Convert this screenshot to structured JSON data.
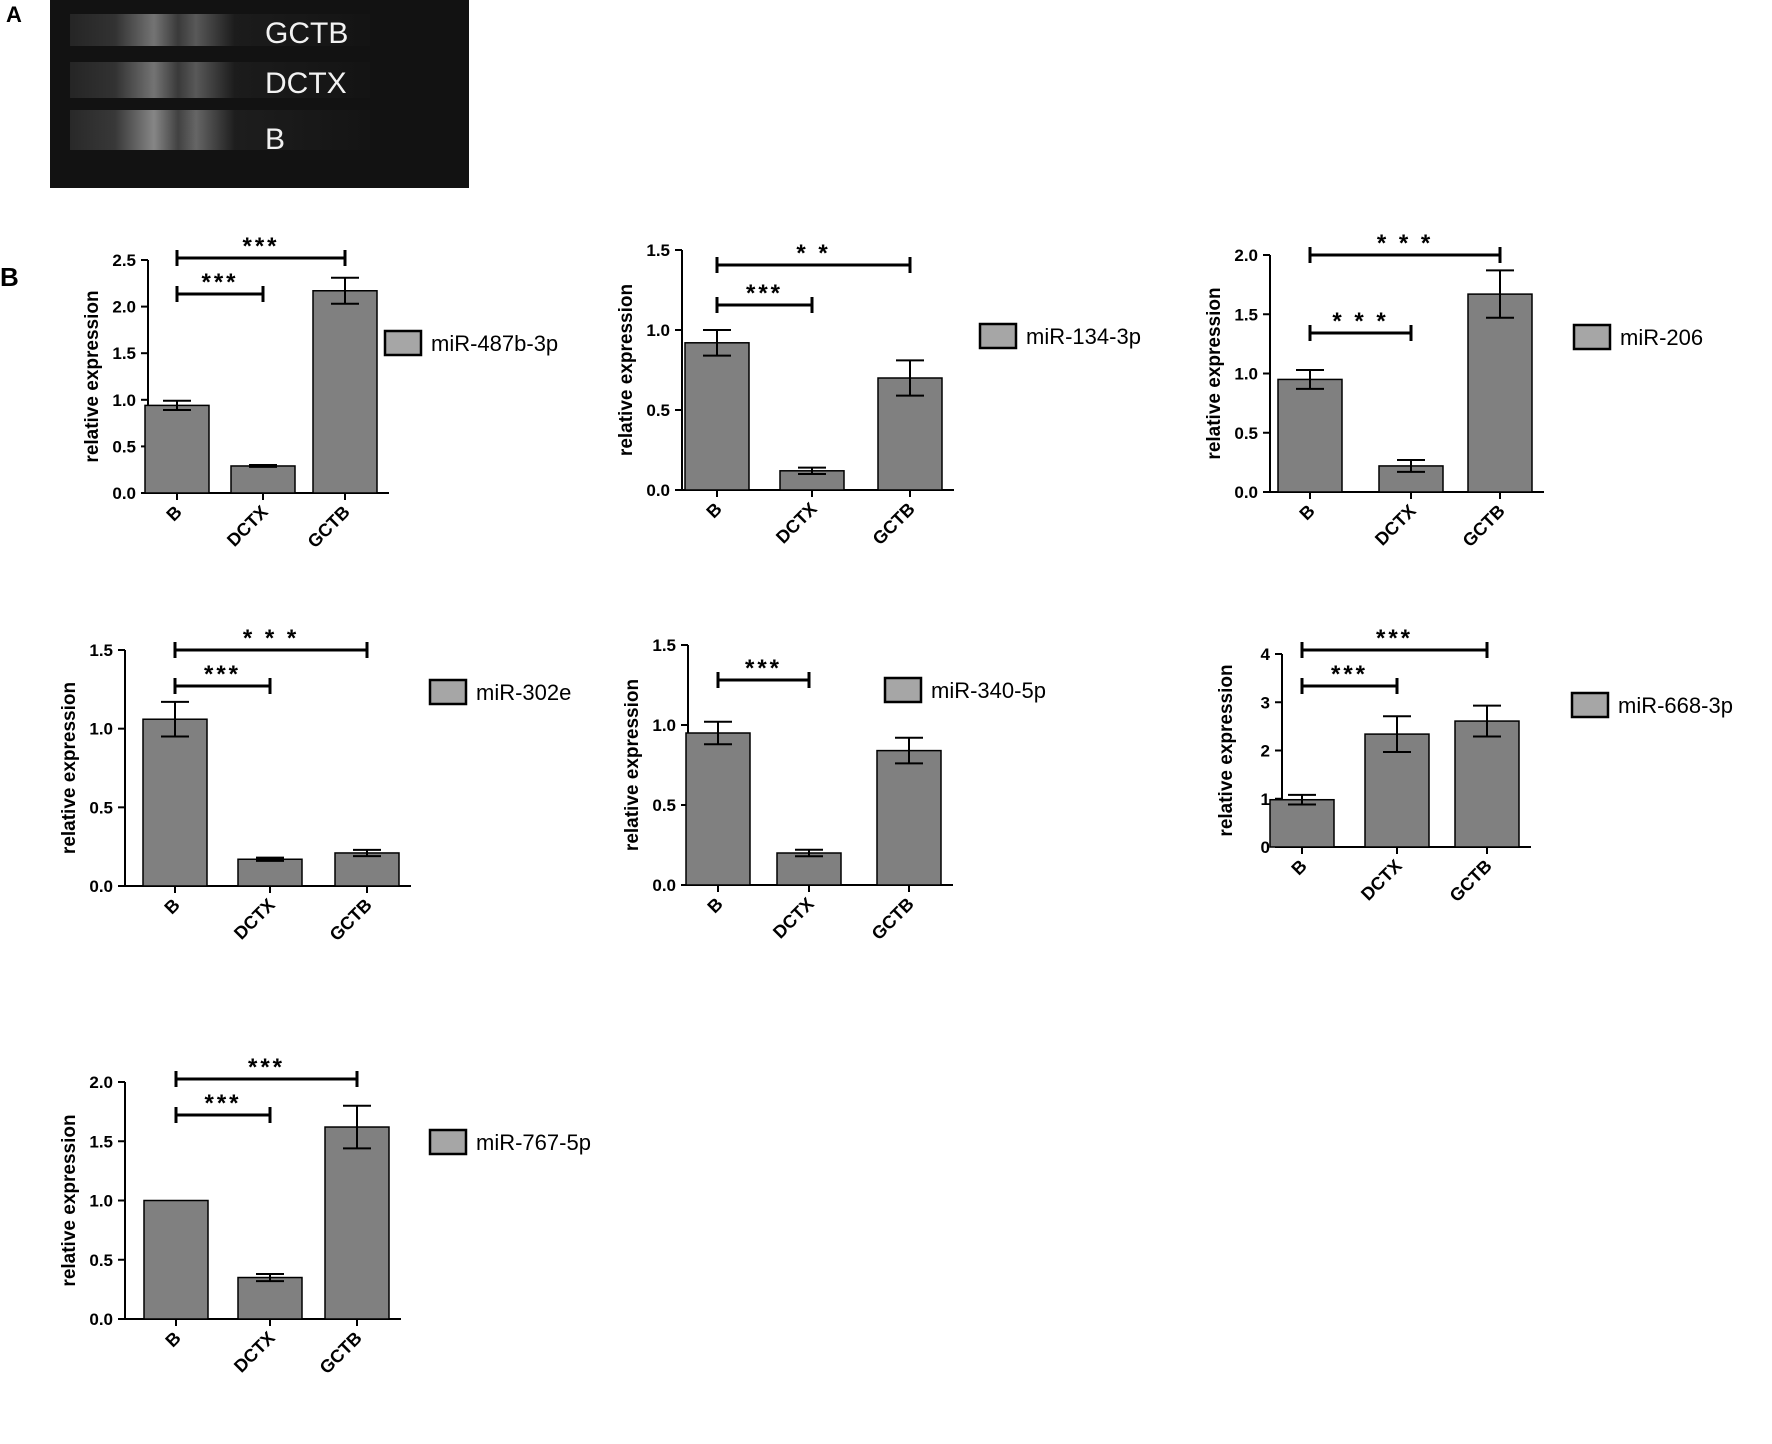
{
  "panel_a": {
    "label": "A",
    "lanes": [
      "GCTB",
      "DCTX",
      "B"
    ]
  },
  "panel_b": {
    "label": "B"
  },
  "colors": {
    "bar": "#808080",
    "legend_swatch": "#a6a6a6",
    "axis": "#000000",
    "gel_bg": "#121212",
    "gel_text": "#f2f2f2"
  },
  "chart_data": [
    {
      "type": "bar",
      "title": "",
      "xlabel": "",
      "ylabel": "relative expression",
      "legend": "miR-487b-3p",
      "categories": [
        "B",
        "DCTX",
        "GCTB"
      ],
      "values": [
        0.94,
        0.29,
        2.17
      ],
      "errors": [
        0.05,
        0.01,
        0.14
      ],
      "ylim": [
        0,
        2.5
      ],
      "yticks": [
        "0.0",
        "0.5",
        "1.0",
        "1.5",
        "2.0",
        "2.5"
      ],
      "significance": [
        {
          "from": "B",
          "to": "GCTB",
          "label": "***"
        },
        {
          "from": "B",
          "to": "DCTX",
          "label": "***"
        }
      ]
    },
    {
      "type": "bar",
      "title": "",
      "xlabel": "",
      "ylabel": "relative expression",
      "legend": "miR-134-3p",
      "categories": [
        "B",
        "DCTX",
        "GCTB"
      ],
      "values": [
        0.92,
        0.12,
        0.7
      ],
      "errors": [
        0.08,
        0.02,
        0.11
      ],
      "ylim": [
        0,
        1.5
      ],
      "yticks": [
        "0.0",
        "0.5",
        "1.0",
        "1.5"
      ],
      "significance": [
        {
          "from": "B",
          "to": "GCTB",
          "label": "* *"
        },
        {
          "from": "B",
          "to": "DCTX",
          "label": "***"
        }
      ]
    },
    {
      "type": "bar",
      "title": "",
      "xlabel": "",
      "ylabel": "relative expression",
      "legend": "miR-206",
      "categories": [
        "B",
        "DCTX",
        "GCTB"
      ],
      "values": [
        0.95,
        0.22,
        1.67
      ],
      "errors": [
        0.08,
        0.05,
        0.2
      ],
      "ylim": [
        0,
        2.0
      ],
      "yticks": [
        "0.0",
        "0.5",
        "1.0",
        "1.5",
        "2.0"
      ],
      "significance": [
        {
          "from": "B",
          "to": "GCTB",
          "label": "* * *"
        },
        {
          "from": "B",
          "to": "DCTX",
          "label": "* * *"
        }
      ]
    },
    {
      "type": "bar",
      "title": "",
      "xlabel": "",
      "ylabel": "relative expression",
      "legend": "miR-302e",
      "categories": [
        "B",
        "DCTX",
        "GCTB"
      ],
      "values": [
        1.06,
        0.17,
        0.21
      ],
      "errors": [
        0.11,
        0.01,
        0.02
      ],
      "ylim": [
        0,
        1.5
      ],
      "yticks": [
        "0.0",
        "0.5",
        "1.0",
        "1.5"
      ],
      "significance": [
        {
          "from": "B",
          "to": "GCTB",
          "label": "* * *"
        },
        {
          "from": "B",
          "to": "DCTX",
          "label": "***"
        }
      ]
    },
    {
      "type": "bar",
      "title": "",
      "xlabel": "",
      "ylabel": "relative expression",
      "legend": "miR-340-5p",
      "categories": [
        "B",
        "DCTX",
        "GCTB"
      ],
      "values": [
        0.95,
        0.2,
        0.84
      ],
      "errors": [
        0.07,
        0.02,
        0.08
      ],
      "ylim": [
        0,
        1.5
      ],
      "yticks": [
        "0.0",
        "0.5",
        "1.0",
        "1.5"
      ],
      "significance": [
        {
          "from": "B",
          "to": "DCTX",
          "label": "***"
        }
      ]
    },
    {
      "type": "bar",
      "title": "",
      "xlabel": "",
      "ylabel": "relative expression",
      "legend": "miR-668-3p",
      "categories": [
        "B",
        "DCTX",
        "GCTB"
      ],
      "values": [
        0.98,
        2.34,
        2.61
      ],
      "errors": [
        0.1,
        0.37,
        0.32
      ],
      "ylim": [
        0,
        4
      ],
      "yticks": [
        "0",
        "1",
        "2",
        "3",
        "4"
      ],
      "significance": [
        {
          "from": "B",
          "to": "GCTB",
          "label": "***"
        },
        {
          "from": "B",
          "to": "DCTX",
          "label": "***"
        }
      ]
    },
    {
      "type": "bar",
      "title": "",
      "xlabel": "",
      "ylabel": "relative expression",
      "legend": "miR-767-5p",
      "categories": [
        "B",
        "DCTX",
        "GCTB"
      ],
      "values": [
        1.0,
        0.35,
        1.62
      ],
      "errors": [
        0.0,
        0.03,
        0.18
      ],
      "ylim": [
        0,
        2.0
      ],
      "yticks": [
        "0.0",
        "0.5",
        "1.0",
        "1.5",
        "2.0"
      ],
      "significance": [
        {
          "from": "B",
          "to": "GCTB",
          "label": "***"
        },
        {
          "from": "B",
          "to": "DCTX",
          "label": "***"
        }
      ]
    }
  ]
}
